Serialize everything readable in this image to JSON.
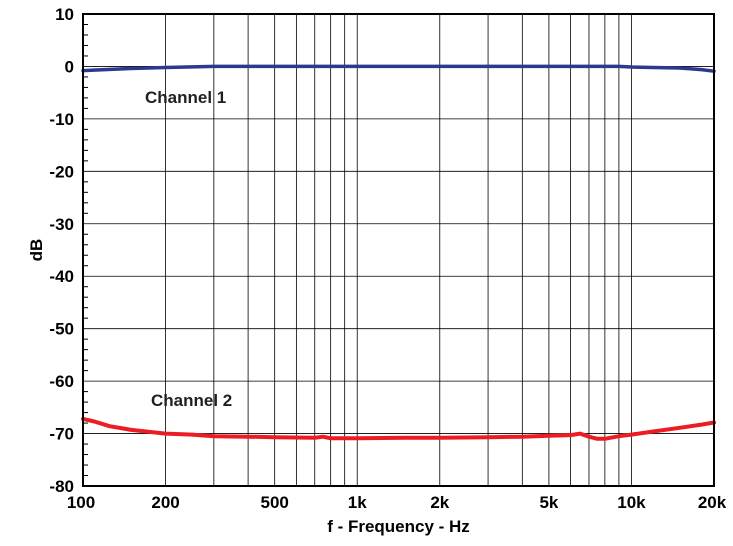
{
  "chart_data": {
    "type": "line",
    "xscale": "log",
    "xlim": [
      100,
      20000
    ],
    "ylim": [
      -80,
      10
    ],
    "x_ticks": [
      100,
      200,
      500,
      1000,
      2000,
      5000,
      10000,
      20000
    ],
    "x_tick_labels": [
      "100",
      "200",
      "500",
      "1k",
      "2k",
      "5k",
      "10k",
      "20k"
    ],
    "y_ticks": [
      10,
      0,
      -10,
      -20,
      -30,
      -40,
      -50,
      -60,
      -70,
      -80
    ],
    "y_tick_labels": [
      "10",
      "0",
      "-10",
      "-20",
      "-30",
      "-40",
      "-50",
      "-60",
      "-70",
      "-80"
    ],
    "xlabel": "f - Frequency - Hz",
    "ylabel": "dB",
    "grid": true,
    "series": [
      {
        "name": "Channel 1",
        "color": "#2b3990",
        "x": [
          100,
          120,
          150,
          200,
          300,
          500,
          1000,
          2000,
          5000,
          9000,
          10000,
          12000,
          15000,
          18000,
          20000
        ],
        "y": [
          -0.8,
          -0.6,
          -0.4,
          -0.2,
          0,
          0,
          0,
          0,
          0,
          0,
          -0.1,
          -0.2,
          -0.3,
          -0.6,
          -0.9
        ]
      },
      {
        "name": "Channel 2",
        "color": "#ed1c24",
        "x": [
          100,
          110,
          125,
          150,
          200,
          250,
          300,
          400,
          500,
          700,
          750,
          800,
          900,
          1000,
          1500,
          2000,
          3000,
          4000,
          5000,
          6000,
          6500,
          7000,
          7500,
          8000,
          9000,
          10000,
          12000,
          15000,
          18000,
          20000
        ],
        "y": [
          -67.2,
          -67.7,
          -68.6,
          -69.3,
          -70.0,
          -70.2,
          -70.5,
          -70.6,
          -70.7,
          -70.8,
          -70.6,
          -70.9,
          -70.9,
          -70.9,
          -70.8,
          -70.8,
          -70.7,
          -70.6,
          -70.4,
          -70.3,
          -70.0,
          -70.6,
          -71.0,
          -71.0,
          -70.5,
          -70.2,
          -69.6,
          -68.9,
          -68.3,
          -67.9
        ]
      }
    ],
    "annotations": [
      "Channel 1",
      "Channel 2"
    ]
  }
}
